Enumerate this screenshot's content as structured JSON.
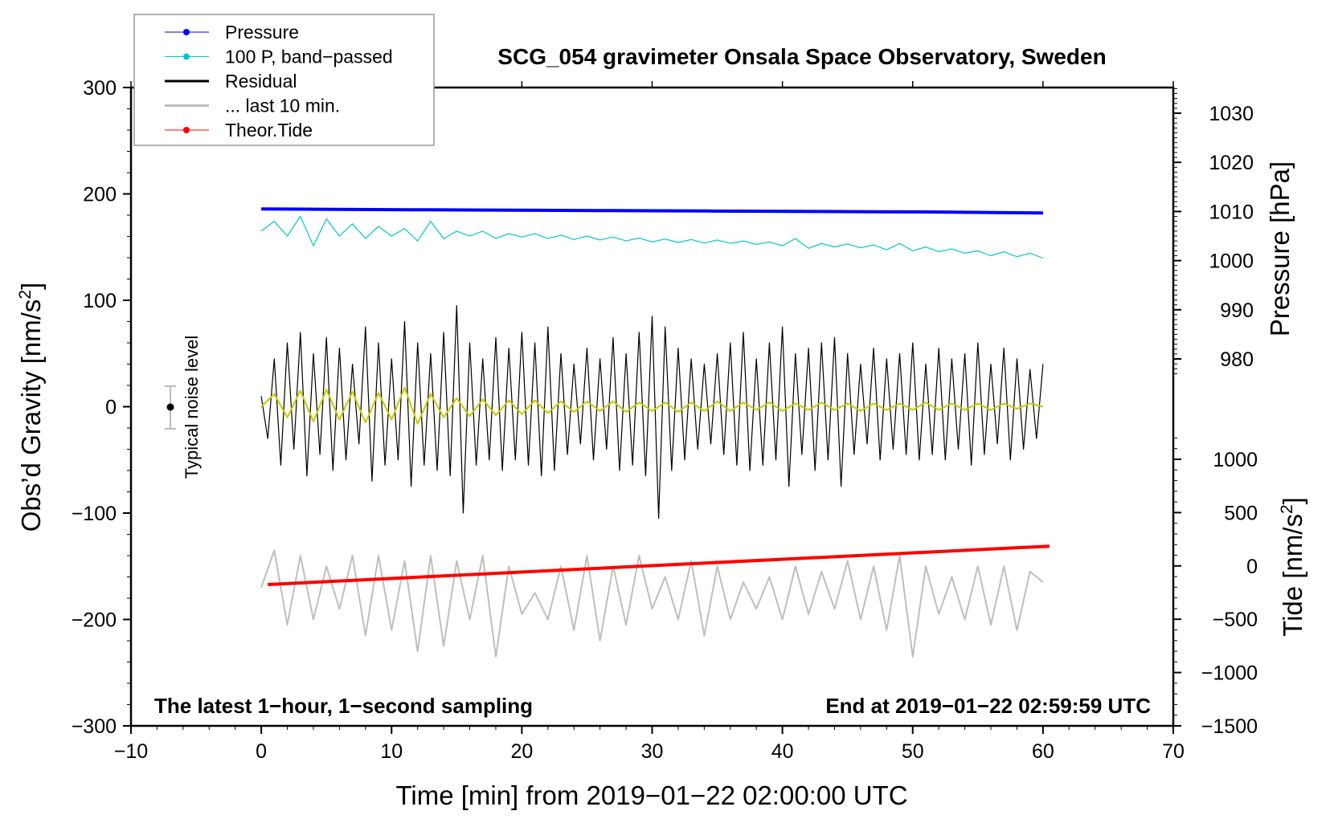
{
  "chart_data": {
    "type": "line",
    "title": "SCG_054 gravimeter Onsala Space Observatory, Sweden",
    "xlabel": "Time [min] from 2019−01−22 02:00:00 UTC",
    "ylabel_left": "Obs’d Gravity [nm/s",
    "ylabel_left_sup": "2",
    "ylabel_left_end": "]",
    "ylabel_right_pressure": "Pressure [hPa]",
    "ylabel_right_tide": "Tide [nm/s",
    "ylabel_right_tide_sup": "2",
    "ylabel_right_tide_end": "]",
    "xlim": [
      -10,
      70
    ],
    "ylim_left": [
      -300,
      300
    ],
    "ylim_pressure_ticks": [
      980,
      1030
    ],
    "ylim_tide": [
      -1500,
      1000
    ],
    "x_ticks": [
      "−10",
      "0",
      "10",
      "20",
      "30",
      "40",
      "50",
      "60",
      "70"
    ],
    "x_tick_values": [
      -10,
      0,
      10,
      20,
      30,
      40,
      50,
      60,
      70
    ],
    "y_left_ticks": [
      "300",
      "200",
      "100",
      "0",
      "−100",
      "−200",
      "−300"
    ],
    "y_left_tick_values": [
      300,
      200,
      100,
      0,
      -100,
      -200,
      -300
    ],
    "pressure_ticks": [
      "1030",
      "1020",
      "1010",
      "1000",
      "990",
      "980"
    ],
    "pressure_tick_values": [
      1030,
      1020,
      1010,
      1000,
      990,
      980
    ],
    "tide_ticks": [
      "1000",
      "500",
      "0",
      "−500",
      "−1000",
      "−1500"
    ],
    "tide_tick_values": [
      1000,
      500,
      0,
      -500,
      -1000,
      -1500
    ],
    "annotation_left": "The latest 1−hour, 1−second sampling",
    "annotation_right": "End at 2019−01−22 02:59:59 UTC",
    "noise_label": "Typical noise level",
    "noise_level": {
      "x": -7,
      "center": 0,
      "half_range": 20
    },
    "legend_position": "top-left",
    "legend": [
      {
        "label": "Pressure",
        "color": "#0000ff",
        "marker": true
      },
      {
        "label": "100 P, band−passed",
        "color": "#00c8c8",
        "marker": true
      },
      {
        "label": "Residual",
        "color": "#000000",
        "marker": false
      },
      {
        "label": "... last 10 min.",
        "color": "#bebebe",
        "marker": false
      },
      {
        "label": "Theor.Tide",
        "color": "#ff0000",
        "marker": true
      }
    ],
    "series": [
      {
        "name": "Pressure",
        "axis": "pressure",
        "color": "#0000ff",
        "x_range": [
          0,
          60
        ],
        "values": [
          1010.5,
          1010.45,
          1010.4,
          1010.35,
          1010.3,
          1010.25,
          1010.2,
          1010.15,
          1010.1,
          1010.05,
          1010.0,
          1009.95,
          1009.9,
          1009.8,
          1009.7
        ]
      },
      {
        "name": "100 P, band-passed",
        "axis": "pressure",
        "color": "#00c8c8",
        "x_range": [
          0,
          60
        ],
        "values": [
          1006,
          1008,
          1005,
          1009,
          1003,
          1008.5,
          1005,
          1007.5,
          1004.5,
          1007,
          1005,
          1006.5,
          1004,
          1008,
          1004.5,
          1006,
          1005,
          1006,
          1004.5,
          1005.5,
          1004.8,
          1005.5,
          1004.5,
          1005.2,
          1004.3,
          1005,
          1004.2,
          1004.8,
          1004,
          1004.6,
          1003.8,
          1004.4,
          1003.7,
          1004.3,
          1003.6,
          1004.2,
          1003.5,
          1004,
          1003.3,
          1003.8,
          1003,
          1004.5,
          1002.5,
          1003.5,
          1002.8,
          1003.4,
          1002.6,
          1003.2,
          1002.2,
          1003.5,
          1002,
          1002.8,
          1001.8,
          1002.4,
          1001.5,
          1002,
          1001,
          1001.8,
          1000.8,
          1001.5,
          1000.5
        ]
      },
      {
        "name": "Residual",
        "axis": "gravity",
        "color": "#000000",
        "x_range": [
          0,
          60
        ],
        "values": [
          10,
          -30,
          45,
          -55,
          60,
          -40,
          70,
          -65,
          50,
          -45,
          65,
          -60,
          55,
          -50,
          40,
          -35,
          75,
          -70,
          60,
          -55,
          45,
          -50,
          80,
          -75,
          60,
          -55,
          50,
          -60,
          70,
          -65,
          95,
          -100,
          60,
          -55,
          45,
          -50,
          65,
          -60,
          55,
          -50,
          70,
          -55,
          60,
          -65,
          75,
          -60,
          50,
          -45,
          40,
          -35,
          55,
          -50,
          45,
          -40,
          65,
          -60,
          50,
          -55,
          70,
          -65,
          85,
          -105,
          75,
          -60,
          55,
          -50,
          45,
          -40,
          40,
          -35,
          50,
          -45,
          60,
          -55,
          70,
          -60,
          45,
          -55,
          60,
          -50,
          75,
          -75,
          50,
          -45,
          55,
          -60,
          60,
          -50,
          65,
          -75,
          50,
          -45,
          40,
          -35,
          55,
          -50,
          45,
          -40,
          50,
          -45,
          60,
          -50,
          40,
          -45,
          55,
          -50,
          45,
          -40,
          50,
          -55,
          60,
          -45,
          40,
          -35,
          55,
          -50,
          45,
          -40,
          35,
          -30,
          40
        ]
      },
      {
        "name": "Residual (smoothed)",
        "axis": "gravity",
        "color": "#c8c800",
        "x_range": [
          0,
          60
        ],
        "values": [
          0,
          12,
          -10,
          15,
          -14,
          16,
          -12,
          14,
          -15,
          13,
          -12,
          18,
          -16,
          12,
          -10,
          8,
          -9,
          7,
          -8,
          6,
          -7,
          6,
          -6,
          5,
          -5,
          5,
          -4,
          5,
          -5,
          4,
          -4,
          4,
          -5,
          4,
          -4,
          5,
          -4,
          4,
          -3,
          4,
          -4,
          3,
          -3,
          4,
          -3,
          3,
          -4,
          3,
          -3,
          3,
          -3,
          4,
          -3,
          3,
          -3,
          3,
          -3,
          3,
          -2,
          3,
          0
        ]
      },
      {
        "name": "... last 10 min.",
        "axis": "gravity",
        "color": "#bebebe",
        "x_range": [
          0,
          60
        ],
        "values": [
          -170,
          -135,
          -205,
          -140,
          -200,
          -150,
          -190,
          -140,
          -215,
          -140,
          -210,
          -145,
          -230,
          -140,
          -225,
          -145,
          -200,
          -140,
          -235,
          -150,
          -195,
          -175,
          -200,
          -150,
          -210,
          -140,
          -220,
          -150,
          -205,
          -140,
          -190,
          -160,
          -200,
          -145,
          -215,
          -150,
          -200,
          -165,
          -190,
          -160,
          -200,
          -150,
          -195,
          -155,
          -190,
          -145,
          -200,
          -150,
          -210,
          -140,
          -235,
          -150,
          -195,
          -160,
          -200,
          -150,
          -205,
          -150,
          -210,
          -155,
          -165
        ]
      },
      {
        "name": "Theor.Tide",
        "axis": "tide",
        "color": "#ff0000",
        "x_range": [
          0.5,
          60.5
        ],
        "values": [
          -175,
          185
        ]
      }
    ]
  }
}
